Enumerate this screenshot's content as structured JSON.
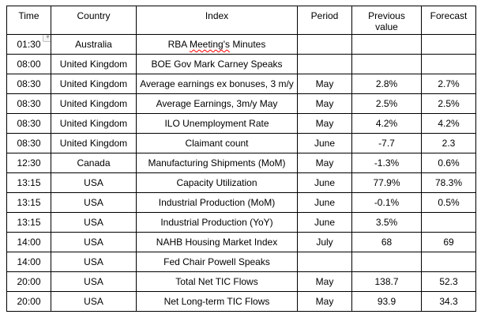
{
  "colors": {
    "table_border": "#000000",
    "text": "#000000",
    "spellcheck_underline": "#ff0000",
    "marker_background": "#f5f5f5",
    "marker_border": "#c0c0c0"
  },
  "icons": {
    "dropdown_marker": "▾"
  },
  "table": {
    "headers": [
      "Time",
      "Country",
      "Index",
      "Period",
      "Previous value",
      "Forecast"
    ],
    "rows": [
      {
        "time": "01:30",
        "country": "Australia",
        "index": "RBA Meeting's Minutes",
        "period": "",
        "previous": "",
        "forecast": "",
        "index_align": "left",
        "misspelled": "Meeting's",
        "marker": true
      },
      {
        "time": "08:00",
        "country": "United Kingdom",
        "index": "BOE Gov Mark Carney Speaks",
        "period": "",
        "previous": "",
        "forecast": "",
        "index_align": "left"
      },
      {
        "time": "08:30",
        "country": "United Kingdom",
        "index": "Average earnings ex bonuses, 3 m/y",
        "period": "May",
        "previous": "2.8%",
        "forecast": "2.7%",
        "index_align": "center"
      },
      {
        "time": "08:30",
        "country": "United Kingdom",
        "index": "Average Earnings, 3m/y May",
        "period": "May",
        "previous": "2.5%",
        "forecast": "2.5%",
        "index_align": "center",
        "forecast_align": "left"
      },
      {
        "time": "08:30",
        "country": "United Kingdom",
        "index": "ILO Unemployment Rate",
        "period": "May",
        "previous": "4.2%",
        "forecast": "4.2%",
        "index_align": "center"
      },
      {
        "time": "08:30",
        "country": "United Kingdom",
        "index": "Claimant count",
        "period": "June",
        "previous": "-7.7",
        "forecast": "2.3",
        "index_align": "center"
      },
      {
        "time": "12:30",
        "country": "Canada",
        "index": "Manufacturing Shipments (MoM)",
        "period": "May",
        "previous": "-1.3%",
        "forecast": "0.6%",
        "index_align": "center"
      },
      {
        "time": "13:15",
        "country": "USA",
        "index": "Capacity Utilization",
        "period": "June",
        "previous": "77.9%",
        "forecast": "78.3%",
        "index_align": "center"
      },
      {
        "time": "13:15",
        "country": "USA",
        "index": "Industrial Production (MoM)",
        "period": "June",
        "previous": "-0.1%",
        "forecast": "0.5%",
        "index_align": "center"
      },
      {
        "time": "13:15",
        "country": "USA",
        "index": "Industrial Production (YoY)",
        "period": "June",
        "previous": "3.5%",
        "forecast": "",
        "index_align": "center"
      },
      {
        "time": "14:00",
        "country": "USA",
        "index": "NAHB Housing Market Index",
        "period": "July",
        "previous": "68",
        "forecast": "69",
        "index_align": "center"
      },
      {
        "time": "14:00",
        "country": "USA",
        "index": "Fed Chair Powell Speaks",
        "period": "",
        "previous": "",
        "forecast": "",
        "index_align": "left"
      },
      {
        "time": "20:00",
        "country": "USA",
        "index": "Total Net TIC Flows",
        "period": "May",
        "previous": "138.7",
        "forecast": "52.3",
        "index_align": "center"
      },
      {
        "time": "20:00",
        "country": "USA",
        "index": "Net Long-term TIC Flows",
        "period": "May",
        "previous": "93.9",
        "forecast": "34.3",
        "index_align": "center"
      }
    ]
  }
}
